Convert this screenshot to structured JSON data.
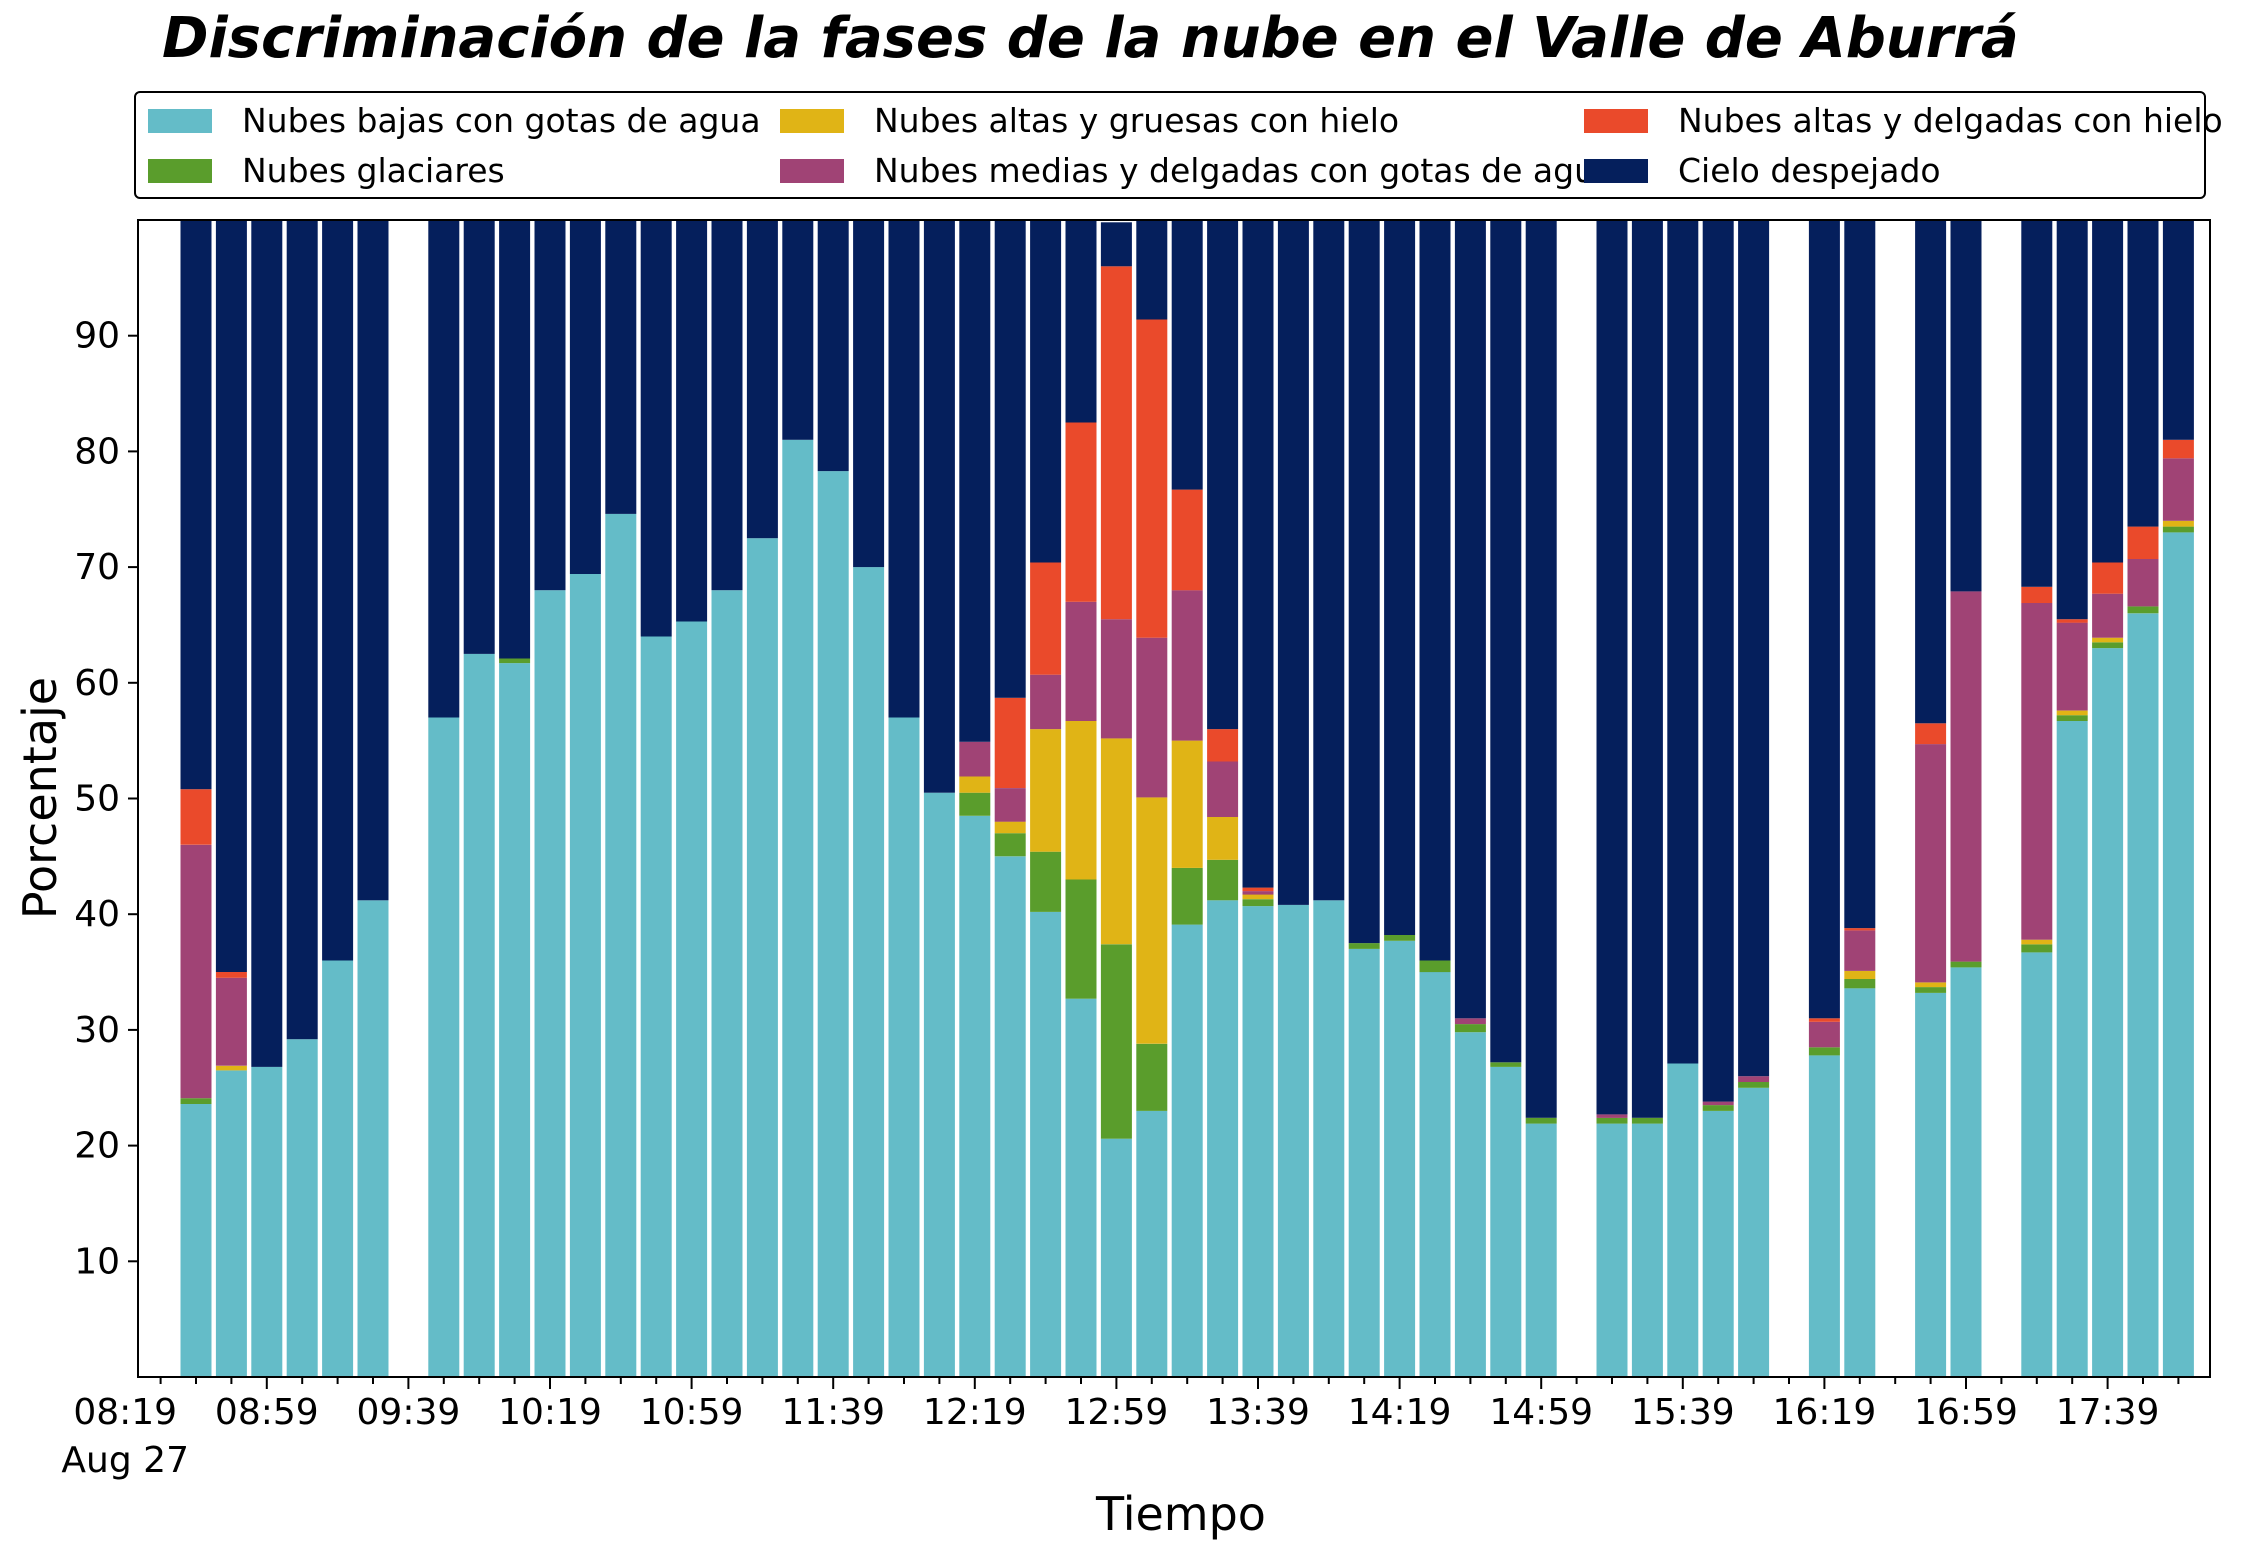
{
  "chart_data": {
    "type": "bar",
    "stacked": true,
    "title": "Discriminación de la fases de la nube en el Valle de Aburrá",
    "xlabel": "Tiempo",
    "ylabel": "Porcentaje",
    "ylim": [
      0,
      100
    ],
    "yticks": [
      10,
      20,
      30,
      40,
      50,
      60,
      70,
      80,
      90
    ],
    "x_tick_labels": [
      "08:19",
      "08:59",
      "09:39",
      "10:19",
      "10:59",
      "11:39",
      "12:19",
      "12:59",
      "13:39",
      "14:19",
      "14:59",
      "15:39",
      "16:19",
      "16:59",
      "17:39"
    ],
    "x_date_label": "Aug 27",
    "x_start": "08:19",
    "x_interval_minutes": 10,
    "grid": false,
    "legend_position": "top",
    "series": [
      {
        "name": "Nubes bajas con gotas de agua",
        "color": "#64bcc8",
        "values": [
          23.6,
          26.5,
          26.8,
          29.2,
          36.0,
          41.2,
          null,
          57.0,
          62.5,
          61.7,
          68.0,
          69.4,
          74.6,
          64.0,
          65.3,
          68.0,
          72.5,
          81.0,
          78.3,
          70.0,
          57.0,
          50.5,
          48.5,
          45.0,
          40.2,
          32.7,
          20.6,
          23.0,
          39.1,
          41.2,
          40.7,
          40.8,
          41.2,
          37.0,
          37.7,
          35.0,
          29.8,
          26.8,
          21.9,
          null,
          21.9,
          21.9,
          27.1,
          23.0,
          25.0,
          null,
          27.8,
          33.6,
          null,
          33.2,
          35.4,
          null,
          36.7,
          56.7,
          63.0,
          66.0,
          73.0
        ]
      },
      {
        "name": "Nubes glaciares",
        "color": "#5a9d2c",
        "values": [
          0.5,
          0,
          0,
          0,
          0,
          0,
          null,
          0,
          0,
          0.4,
          0,
          0,
          0,
          0,
          0,
          0,
          0,
          0,
          0,
          0,
          0,
          0,
          2.0,
          2.0,
          5.2,
          10.3,
          16.8,
          5.8,
          4.9,
          3.5,
          0.6,
          0,
          0,
          0.5,
          0.5,
          1.0,
          0.7,
          0.4,
          0.5,
          null,
          0.5,
          0.5,
          0,
          0.5,
          0.5,
          null,
          0.7,
          0.8,
          null,
          0.5,
          0.5,
          null,
          0.7,
          0.5,
          0.5,
          0.6,
          0.5
        ]
      },
      {
        "name": "Nubes altas y gruesas con hielo",
        "color": "#e0b416",
        "values": [
          0,
          0.4,
          0,
          0,
          0,
          0,
          null,
          0,
          0,
          0,
          0,
          0,
          0,
          0,
          0,
          0,
          0,
          0,
          0,
          0,
          0,
          0,
          1.4,
          1.0,
          10.6,
          13.7,
          17.8,
          21.3,
          11.0,
          3.7,
          0.4,
          0,
          0,
          0,
          0,
          0,
          0,
          0,
          0,
          null,
          0,
          0,
          0,
          0,
          0,
          null,
          0,
          0.7,
          null,
          0.4,
          0,
          null,
          0.4,
          0.4,
          0.4,
          0,
          0.5
        ]
      },
      {
        "name": "Nubes medias y delgadas con gotas de agua",
        "color": "#a04375",
        "values": [
          21.9,
          7.6,
          0,
          0,
          0,
          0,
          null,
          0,
          0,
          0,
          0,
          0,
          0,
          0,
          0,
          0,
          0,
          0,
          0,
          0,
          0,
          0,
          3.0,
          2.9,
          4.7,
          10.3,
          10.3,
          13.8,
          13.0,
          4.8,
          0.3,
          0,
          0,
          0,
          0,
          0,
          0.5,
          0,
          0,
          null,
          0.3,
          0,
          0,
          0.3,
          0.5,
          null,
          2.2,
          3.5,
          null,
          20.6,
          32.0,
          null,
          29.1,
          7.6,
          3.8,
          4.1,
          5.4
        ]
      },
      {
        "name": "Nubes altas y delgadas con hielo",
        "color": "#ea4a2b",
        "values": [
          4.8,
          0.5,
          0,
          0,
          0,
          0,
          null,
          0,
          0,
          0,
          0,
          0,
          0,
          0,
          0,
          0,
          0,
          0,
          0,
          0,
          0,
          0,
          0,
          7.8,
          9.7,
          15.5,
          30.5,
          27.5,
          8.7,
          2.8,
          0.3,
          0,
          0,
          0,
          0,
          0,
          0,
          0,
          0,
          null,
          0,
          0,
          0,
          0,
          0,
          null,
          0.3,
          0.2,
          null,
          1.8,
          0,
          null,
          1.4,
          0.3,
          2.7,
          2.8,
          1.6
        ]
      },
      {
        "name": "Cielo despejado",
        "color": "#051f5c",
        "values": [
          49.2,
          65.0,
          73.2,
          70.8,
          64.0,
          58.8,
          null,
          43.0,
          37.5,
          37.9,
          32.0,
          30.6,
          25.4,
          36.0,
          34.7,
          32.0,
          27.5,
          19.0,
          21.7,
          30.0,
          43.0,
          49.5,
          45.1,
          41.3,
          29.6,
          17.5,
          3.8,
          8.6,
          23.3,
          44.0,
          57.7,
          59.2,
          58.8,
          62.5,
          61.8,
          64.0,
          69.0,
          72.8,
          77.6,
          null,
          77.3,
          77.6,
          72.9,
          76.2,
          74.0,
          null,
          69.0,
          61.2,
          null,
          43.5,
          32.1,
          null,
          31.7,
          34.5,
          29.6,
          26.5,
          19.0
        ]
      }
    ]
  }
}
